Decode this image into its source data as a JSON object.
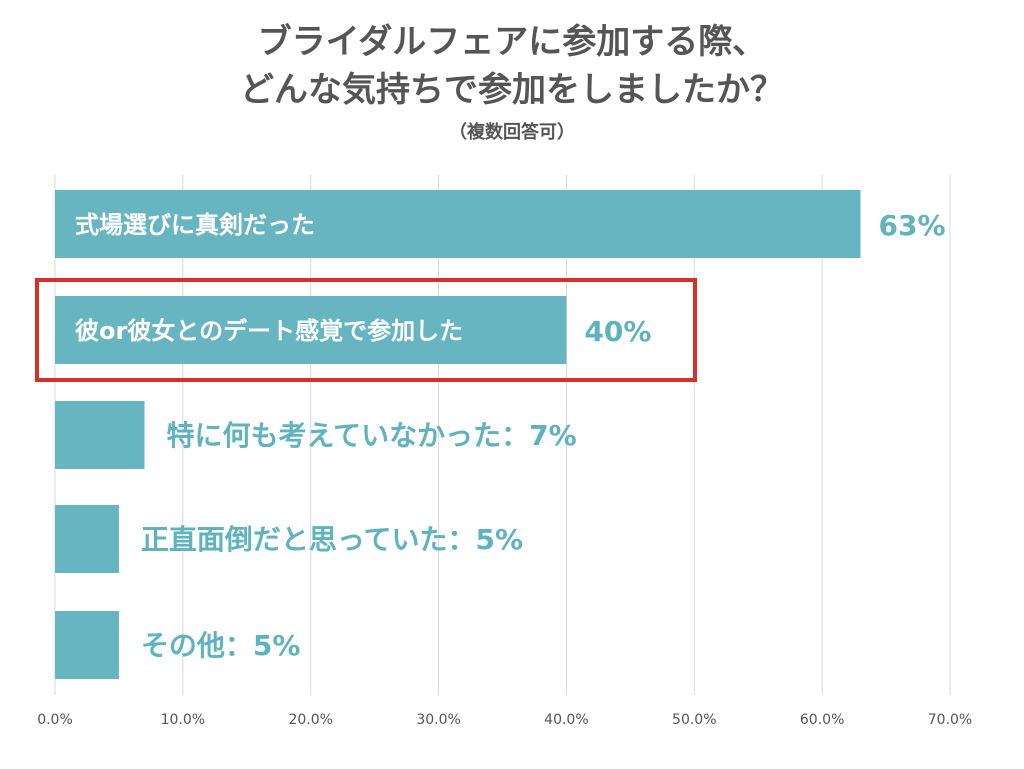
{
  "title_line1": "ブライダルフェアに参加する際、",
  "title_line2": "どんな気持ちで参加をしましたか？",
  "subtitle": "（複数回答可）",
  "colors": {
    "bar": "#67b5c0",
    "label_outside": "#5fb3bf",
    "highlight": "#d6302a",
    "grid": "#d9d9d9"
  },
  "chart_data": {
    "type": "bar",
    "orientation": "horizontal",
    "categories": [
      "式場選びに真剣だった",
      "彼or彼女とのデート感覚で参加した",
      "特に何も考えていなかった",
      "正直面倒だと思っていた",
      "その他"
    ],
    "values": [
      63,
      40,
      7,
      5,
      5
    ],
    "value_labels": [
      "63%",
      "40%",
      "7%",
      "5%",
      "5%"
    ],
    "label_texts": [
      "式場選びに真剣だった",
      "彼or彼女とのデート感覚で参加した",
      "特に何も考えていなかった：7%",
      "正直面倒だと思っていた：5%",
      "その他：5%"
    ],
    "label_inside": [
      true,
      true,
      false,
      false,
      false
    ],
    "highlighted_category": "彼or彼女とのデート感覚で参加した",
    "xlim": [
      0,
      70
    ],
    "x_ticks": [
      "0.0%",
      "10.0%",
      "20.0%",
      "30.0%",
      "40.0%",
      "50.0%",
      "60.0%",
      "70.0%"
    ],
    "grid": true
  }
}
